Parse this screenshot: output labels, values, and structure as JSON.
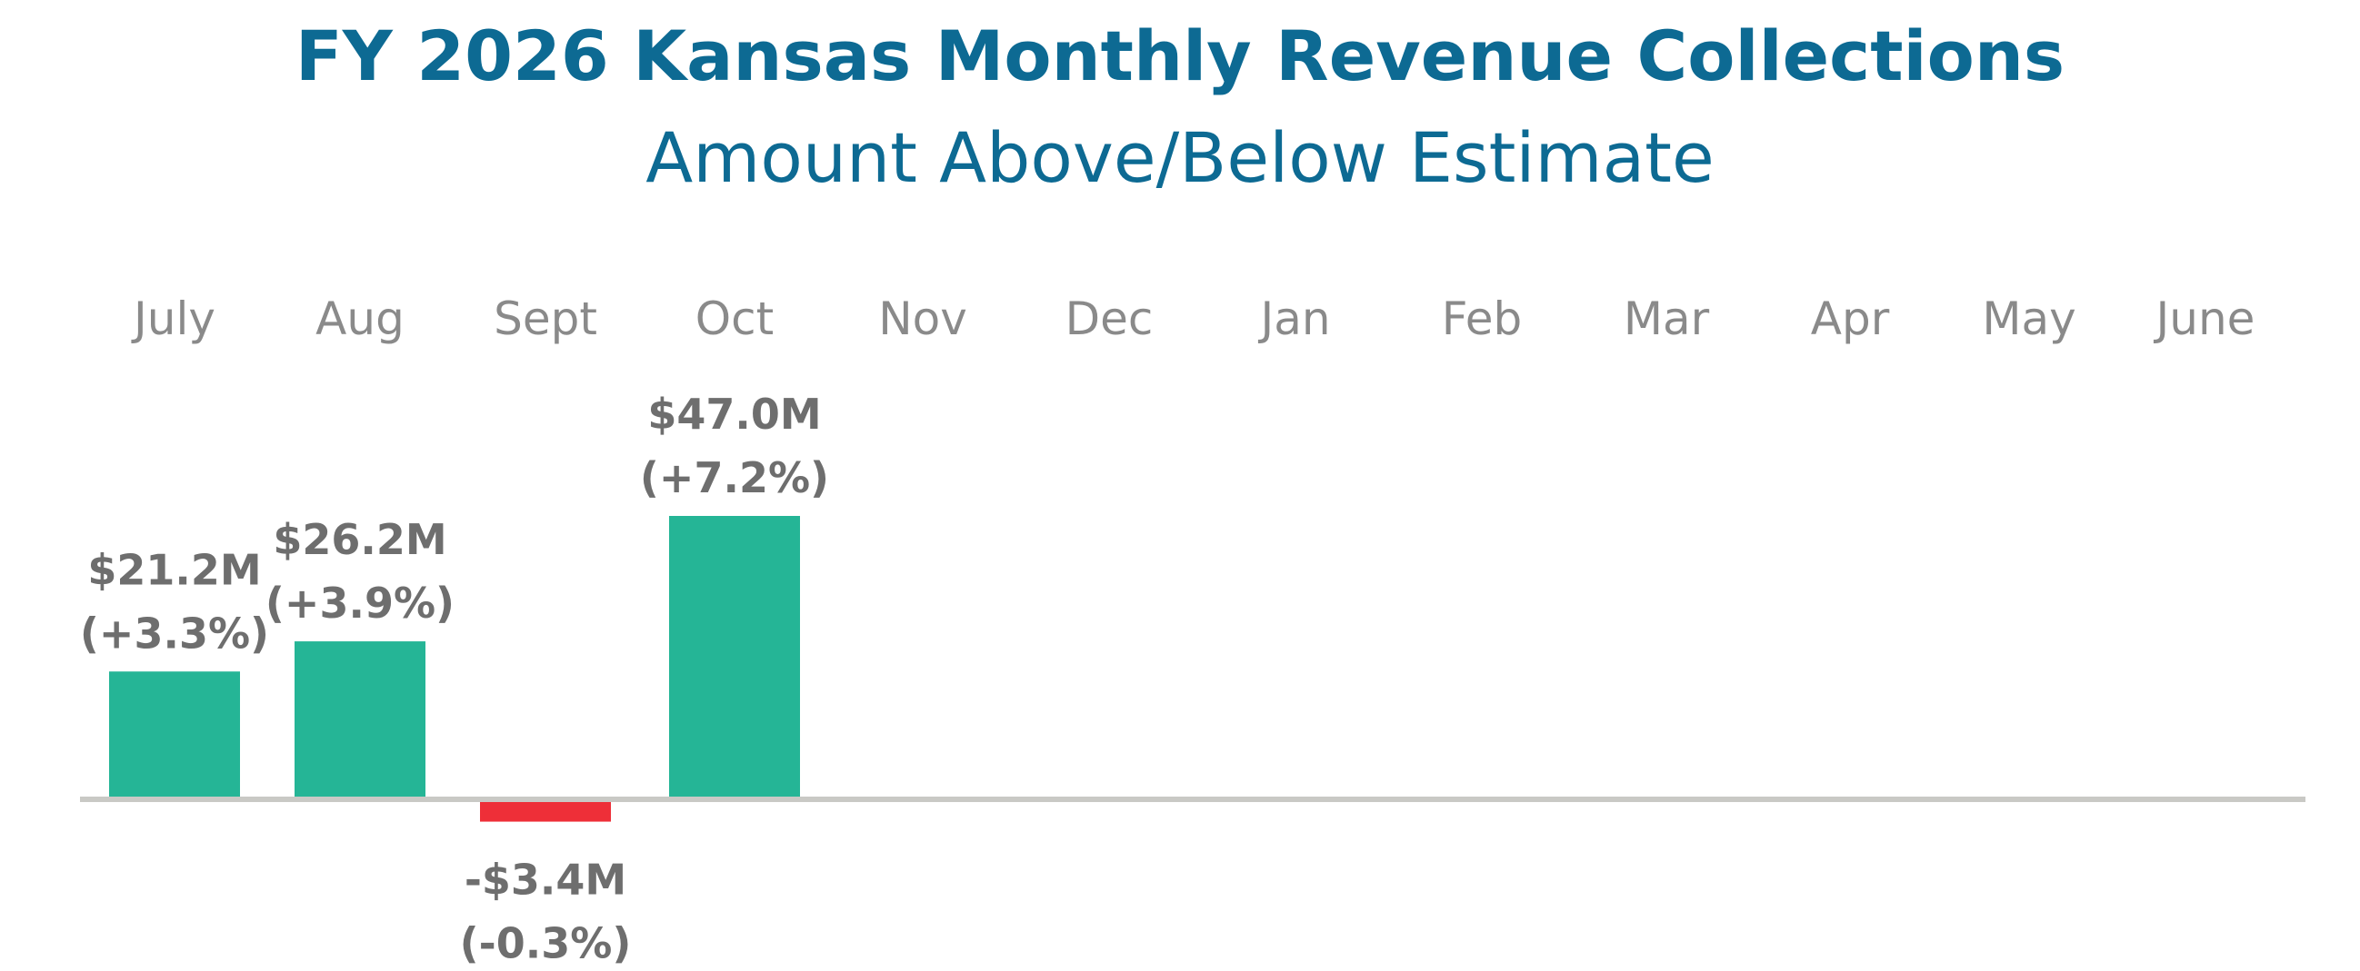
{
  "colors": {
    "title": "#0d6a93",
    "positive": "#25b596",
    "negative": "#ee2f38",
    "axis": "#c9c9c5",
    "month_label": "#8a8a8a",
    "data_label": "#6e6e6e"
  },
  "chart_data": {
    "type": "bar",
    "title": "FY 2026 Kansas Monthly Revenue Collections",
    "subtitle": "Amount Above/Below Estimate",
    "categories": [
      "July",
      "Aug",
      "Sept",
      "Oct",
      "Nov",
      "Dec",
      "Jan",
      "Feb",
      "Mar",
      "Apr",
      "May",
      "June"
    ],
    "series": [
      {
        "name": "Amount Above/Below Estimate ($M)",
        "values": [
          21.2,
          26.2,
          -3.4,
          47.0,
          null,
          null,
          null,
          null,
          null,
          null,
          null,
          null
        ],
        "labels": [
          "$21.2M",
          "$26.2M",
          "-$3.4M",
          "$47.0M",
          null,
          null,
          null,
          null,
          null,
          null,
          null,
          null
        ],
        "pct_labels": [
          "(+3.3%)",
          "(+3.9%)",
          "(-0.3%)",
          "(+7.2%)",
          null,
          null,
          null,
          null,
          null,
          null,
          null,
          null
        ]
      }
    ],
    "xlabel": "",
    "ylabel": "",
    "ylim": [
      -3.4,
      47.0
    ],
    "grid": false,
    "legend": "none"
  }
}
